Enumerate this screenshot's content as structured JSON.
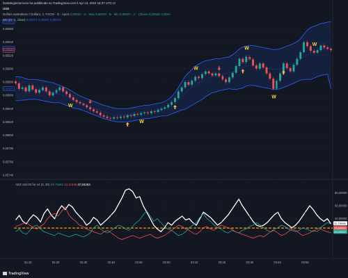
{
  "header": {
    "published": "fxstrategiemercurio ha pubblicato su TradingView.com il Apr 13, 2024 15:37 UTC+2",
    "symbol": "USD",
    "title_line": "Dollaro australiano / Dollaro, 1, FXCM · O · Apert",
    "title_values": "0,65931 · H · Max 0,65930 · B · Min 0,65927 · C · Chiusa 0,65928 -0,00%",
    "bb_label": "BB (20, 2, close)",
    "bb_values": "0,65971 0,65931 0,65870"
  },
  "adx_legend": {
    "label": "ADX and DI for v4 (5, 20)",
    "v1": "19,79463",
    "v2": "12,11638",
    "v3": "47,56263"
  },
  "price_axis": {
    "ticks": [
      "0,65960",
      "0,65940",
      "0,65920",
      "0,65900",
      "0,65880",
      "0,65860",
      "0,65840",
      "0,65820",
      "0,65800",
      "0,65780",
      "0,65760",
      "0,65740"
    ],
    "badges": [
      {
        "text": "0,65971",
        "color": "#2962ff"
      },
      {
        "text": "0,65931",
        "color": "#2962ff"
      },
      {
        "text": "0,65928",
        "color": "#ef5350"
      },
      {
        "text": "0,65870",
        "color": "#2962ff"
      }
    ]
  },
  "adx_axis": {
    "ticks": [
      "80,00000",
      "60,00000",
      "40,00000",
      "20,00000"
    ],
    "badges": [
      {
        "text": "32,75096",
        "color": "#ffffff",
        "fg": "#131722"
      },
      {
        "text": "25,60000",
        "color": "#ef5350",
        "fg": "#ffffff"
      },
      {
        "text": "20,00000",
        "color": "#26a69a",
        "fg": "#ffffff"
      }
    ]
  },
  "time_axis": {
    "ticks": [
      "02:10",
      "02:20",
      "02:30",
      "02:40",
      "02:50",
      "03:00",
      "03:10",
      "03:20",
      "03:30",
      "03:40",
      "03:50"
    ]
  },
  "markers": {
    "w_labels": [
      "W",
      "W",
      "W",
      "W",
      "W",
      "W"
    ]
  },
  "footer": {
    "brand": "TradingView"
  },
  "colors": {
    "bull": "#26a69a",
    "bear": "#ef5350",
    "band": "#2962ff",
    "adx": "#ffffff",
    "di_plus": "#26a69a",
    "di_minus": "#ef5350",
    "threshold": "#ff9800",
    "arrow_up": "#ffb74d",
    "arrow_down": "#ef5350"
  },
  "chart_data": [
    {
      "type": "candlestick",
      "title": "",
      "ylim": [
        0.6574,
        0.6597
      ],
      "close": [
        0.65878,
        0.6587,
        0.65872,
        0.65866,
        0.65875,
        0.65869,
        0.65864,
        0.65868,
        0.65872,
        0.65866,
        0.6586,
        0.65864,
        0.65868,
        0.65872,
        0.65866,
        0.65862,
        0.65857,
        0.65853,
        0.6585,
        0.65848,
        0.65845,
        0.65842,
        0.65839,
        0.65836,
        0.65834,
        0.6583,
        0.65828,
        0.65826,
        0.65825,
        0.65827,
        0.65826,
        0.65828,
        0.65827,
        0.6583,
        0.65829,
        0.65832,
        0.65831,
        0.65833,
        0.65834,
        0.65833,
        0.65836,
        0.65835,
        0.65838,
        0.6584,
        0.65842,
        0.65846,
        0.6585,
        0.65856,
        0.65866,
        0.65872,
        0.6588,
        0.65876,
        0.65882,
        0.65888,
        0.65886,
        0.65892,
        0.65896,
        0.65893,
        0.6589,
        0.65893,
        0.65889,
        0.65884,
        0.6588,
        0.65887,
        0.65894,
        0.65904,
        0.65915,
        0.6591,
        0.65918,
        0.65914,
        0.65905,
        0.659,
        0.65908,
        0.65902,
        0.65893,
        0.65885,
        0.6587,
        0.65882,
        0.65893,
        0.65908,
        0.65901,
        0.65896,
        0.65906,
        0.65915,
        0.65925,
        0.6594,
        0.65934,
        0.65927,
        0.65924,
        0.65928,
        0.65935,
        0.65932,
        0.6593,
        0.65928
      ],
      "bb_upper": [
        0.65888,
        0.65888,
        0.65887,
        0.65885,
        0.65884,
        0.65884,
        0.65884,
        0.65883,
        0.65882,
        0.65881,
        0.6588,
        0.65879,
        0.65877,
        0.65875,
        0.65873,
        0.65871,
        0.65868,
        0.65865,
        0.65862,
        0.65859,
        0.65857,
        0.65855,
        0.65853,
        0.65851,
        0.65849,
        0.65847,
        0.65845,
        0.65844,
        0.65842,
        0.65841,
        0.6584,
        0.6584,
        0.6584,
        0.6584,
        0.65841,
        0.65842,
        0.65843,
        0.65844,
        0.65845,
        0.65845,
        0.65846,
        0.65847,
        0.65848,
        0.65849,
        0.65851,
        0.65854,
        0.65858,
        0.65864,
        0.65872,
        0.6588,
        0.65889,
        0.65894,
        0.65899,
        0.65904,
        0.65907,
        0.6591,
        0.65912,
        0.65913,
        0.65914,
        0.65915,
        0.65915,
        0.65916,
        0.65917,
        0.65918,
        0.65921,
        0.65925,
        0.6593,
        0.65933,
        0.65934,
        0.65935,
        0.65935,
        0.65934,
        0.65933,
        0.65932,
        0.65931,
        0.6593,
        0.65929,
        0.65929,
        0.6593,
        0.65932,
        0.65934,
        0.65936,
        0.65938,
        0.65941,
        0.65945,
        0.65952,
        0.65958,
        0.65962,
        0.65964,
        0.65966,
        0.65968,
        0.65969,
        0.6597,
        0.65971
      ],
      "bb_middle": [
        0.6587,
        0.6587,
        0.6587,
        0.65869,
        0.65869,
        0.65869,
        0.65869,
        0.65868,
        0.65867,
        0.65866,
        0.65865,
        0.65864,
        0.65863,
        0.65862,
        0.6586,
        0.65858,
        0.65856,
        0.65853,
        0.65851,
        0.65849,
        0.65847,
        0.65845,
        0.65843,
        0.65841,
        0.65839,
        0.65837,
        0.65835,
        0.65834,
        0.65832,
        0.65831,
        0.6583,
        0.6583,
        0.6583,
        0.6583,
        0.65831,
        0.65832,
        0.65833,
        0.65834,
        0.65835,
        0.65835,
        0.65836,
        0.65837,
        0.65838,
        0.65839,
        0.6584,
        0.65842,
        0.65845,
        0.65849,
        0.65854,
        0.65859,
        0.65864,
        0.65868,
        0.65872,
        0.65876,
        0.65879,
        0.65882,
        0.65885,
        0.65887,
        0.65889,
        0.6589,
        0.65891,
        0.65892,
        0.65893,
        0.65894,
        0.65895,
        0.65897,
        0.659,
        0.65902,
        0.65904,
        0.65905,
        0.65905,
        0.65904,
        0.65903,
        0.65902,
        0.65901,
        0.659,
        0.65899,
        0.65899,
        0.659,
        0.65902,
        0.65904,
        0.65906,
        0.65908,
        0.65911,
        0.65914,
        0.65918,
        0.65921,
        0.65923,
        0.65925,
        0.65927,
        0.65929,
        0.6593,
        0.65931,
        0.65931
      ],
      "bb_lower": [
        0.65852,
        0.65852,
        0.65853,
        0.65853,
        0.65854,
        0.65854,
        0.65854,
        0.65853,
        0.65852,
        0.65851,
        0.6585,
        0.65849,
        0.65849,
        0.65849,
        0.65847,
        0.65845,
        0.65844,
        0.65841,
        0.6584,
        0.65839,
        0.65837,
        0.65835,
        0.65833,
        0.65831,
        0.65829,
        0.65827,
        0.65825,
        0.65824,
        0.65822,
        0.65821,
        0.6582,
        0.6582,
        0.6582,
        0.6582,
        0.65821,
        0.65822,
        0.65823,
        0.65824,
        0.65825,
        0.65825,
        0.65826,
        0.65827,
        0.65828,
        0.65829,
        0.65829,
        0.6583,
        0.65832,
        0.65834,
        0.65836,
        0.65838,
        0.65839,
        0.65842,
        0.65845,
        0.65848,
        0.65851,
        0.65854,
        0.65858,
        0.65861,
        0.65864,
        0.65865,
        0.65867,
        0.65868,
        0.65869,
        0.6587,
        0.65869,
        0.65869,
        0.6587,
        0.65871,
        0.65874,
        0.65875,
        0.65875,
        0.65874,
        0.65873,
        0.65872,
        0.65871,
        0.6587,
        0.65869,
        0.65869,
        0.6587,
        0.65872,
        0.65874,
        0.65876,
        0.65878,
        0.65881,
        0.65883,
        0.65884,
        0.65884,
        0.65884,
        0.65886,
        0.65888,
        0.6589,
        0.65891,
        0.65892,
        0.6587
      ]
    },
    {
      "type": "line",
      "title": "",
      "ylim": [
        0,
        90
      ],
      "threshold": 25.6,
      "series": [
        {
          "name": "ADX",
          "values": [
            38,
            45,
            36,
            32,
            40,
            46,
            42,
            35,
            48,
            55,
            46,
            40,
            52,
            60,
            54,
            62,
            58,
            50,
            44,
            38,
            30,
            34,
            42,
            38,
            30,
            35,
            40,
            46,
            52,
            62,
            72,
            84,
            86,
            82,
            72,
            74,
            60,
            50,
            40,
            30,
            24,
            20,
            26,
            34,
            30,
            36,
            40,
            44,
            38,
            40,
            34,
            30,
            40,
            50,
            46,
            42,
            36,
            30,
            34,
            40,
            46,
            54,
            62,
            70,
            60,
            52,
            44,
            36,
            30,
            28,
            30,
            34,
            40,
            46,
            50,
            40,
            34,
            30,
            26,
            30,
            36,
            44,
            52,
            60,
            54,
            46,
            40,
            36,
            40,
            32
          ]
        },
        {
          "name": "DI+",
          "values": [
            20,
            24,
            18,
            16,
            22,
            28,
            30,
            24,
            20,
            18,
            16,
            14,
            18,
            16,
            14,
            12,
            14,
            16,
            14,
            12,
            14,
            18,
            26,
            30,
            24,
            20,
            18,
            22,
            26,
            30,
            28,
            24,
            22,
            28,
            34,
            38,
            46,
            52,
            44,
            36,
            40,
            34,
            28,
            24,
            22,
            18,
            14,
            16,
            20,
            26,
            30,
            34,
            42,
            48,
            40,
            36,
            30,
            26,
            24,
            20,
            18,
            22,
            20,
            18,
            22,
            24,
            28,
            30,
            34,
            30,
            26,
            22,
            20,
            24,
            26,
            30,
            28,
            24,
            22,
            20,
            22,
            26,
            24,
            22,
            20,
            24,
            26,
            30,
            34,
            32
          ]
        },
        {
          "name": "DI-",
          "values": [
            28,
            30,
            32,
            34,
            30,
            26,
            24,
            28,
            32,
            40,
            46,
            48,
            44,
            52,
            58,
            46,
            40,
            36,
            30,
            28,
            24,
            22,
            20,
            18,
            16,
            20,
            22,
            18,
            14,
            10,
            8,
            10,
            12,
            14,
            12,
            10,
            12,
            14,
            16,
            12,
            10,
            12,
            14,
            18,
            22,
            26,
            30,
            28,
            24,
            22,
            18,
            16,
            20,
            26,
            28,
            24,
            22,
            26,
            30,
            28,
            26,
            24,
            20,
            18,
            16,
            14,
            12,
            10,
            12,
            14,
            12,
            16,
            20,
            22,
            18,
            14,
            16,
            20,
            24,
            22,
            18,
            14,
            16,
            18,
            22,
            20,
            24,
            22,
            20,
            18
          ]
        }
      ]
    }
  ]
}
